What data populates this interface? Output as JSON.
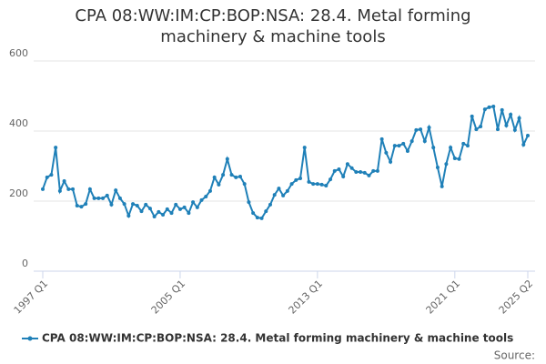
{
  "chart_data": {
    "type": "line",
    "title": "CPA 08:WW:IM:CP:BOP:NSA: 28.4. Metal forming machinery & machine tools",
    "categories": [
      "1997 Q1",
      null,
      null,
      null,
      null,
      null,
      null,
      null,
      null,
      null,
      null,
      null,
      null,
      null,
      null,
      null,
      null,
      null,
      null,
      null,
      null,
      null,
      null,
      null,
      null,
      null,
      null,
      null,
      null,
      null,
      null,
      null,
      "2005 Q1",
      null,
      null,
      null,
      null,
      null,
      null,
      null,
      null,
      null,
      null,
      null,
      null,
      null,
      null,
      null,
      null,
      null,
      null,
      null,
      null,
      null,
      null,
      null,
      null,
      null,
      null,
      null,
      null,
      null,
      null,
      null,
      "2013 Q1",
      null,
      null,
      null,
      null,
      null,
      null,
      null,
      null,
      null,
      null,
      null,
      null,
      null,
      null,
      null,
      null,
      null,
      null,
      null,
      null,
      null,
      null,
      null,
      null,
      null,
      null,
      null,
      null,
      null,
      null,
      null,
      "2021 Q1",
      null,
      null,
      null,
      null,
      null,
      null,
      null,
      null,
      null,
      null,
      null,
      null,
      null,
      null,
      null,
      null,
      "2025 Q2"
    ],
    "series": [
      {
        "name": "CPA 08:WW:IM:CP:BOP:NSA: 28.4. Metal forming machinery & machine tools",
        "color": "#1f80b8",
        "values": [
          234,
          268,
          275,
          353,
          229,
          257,
          234,
          234,
          187,
          184,
          192,
          234,
          208,
          208,
          208,
          216,
          190,
          231,
          208,
          192,
          158,
          192,
          187,
          171,
          190,
          179,
          156,
          169,
          161,
          177,
          166,
          190,
          177,
          182,
          166,
          197,
          182,
          203,
          213,
          229,
          268,
          247,
          275,
          320,
          275,
          268,
          270,
          249,
          197,
          166,
          153,
          151,
          171,
          190,
          218,
          236,
          216,
          229,
          249,
          260,
          265,
          353,
          255,
          249,
          249,
          247,
          244,
          262,
          286,
          291,
          270,
          306,
          294,
          283,
          283,
          281,
          273,
          286,
          286,
          377,
          338,
          312,
          358,
          358,
          364,
          343,
          371,
          403,
          405,
          371,
          410,
          353,
          296,
          242,
          306,
          353,
          322,
          320,
          364,
          358,
          442,
          405,
          413,
          462,
          468,
          470,
          405,
          460,
          416,
          447,
          403,
          437,
          361,
          387
        ]
      }
    ],
    "ylim": [
      0,
      600
    ],
    "yticks": [
      0,
      200,
      400,
      600
    ],
    "grid": true,
    "source": "Source:"
  }
}
